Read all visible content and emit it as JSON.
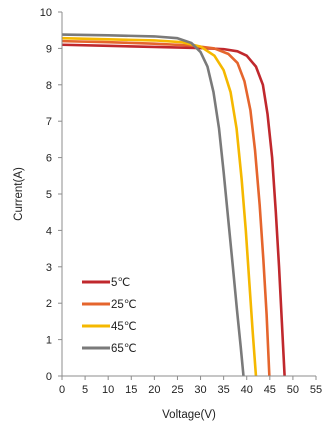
{
  "chart_data": {
    "type": "line",
    "xlabel": "Voltage(V)",
    "ylabel": "Current(A)",
    "xlim": [
      0,
      55
    ],
    "ylim": [
      0,
      10
    ],
    "xticks": [
      "0",
      "5",
      "10",
      "15",
      "20",
      "25",
      "30",
      "35",
      "40",
      "45",
      "50",
      "55"
    ],
    "yticks": [
      "0",
      "1",
      "2",
      "3",
      "4",
      "5",
      "6",
      "7",
      "8",
      "9",
      "10"
    ],
    "grid": false,
    "legend_position": "bottom-left",
    "series": [
      {
        "name": "5℃",
        "color": "#c0282d",
        "points": [
          [
            0,
            9.1
          ],
          [
            10,
            9.07
          ],
          [
            20,
            9.04
          ],
          [
            30,
            9.01
          ],
          [
            35,
            8.98
          ],
          [
            38,
            8.92
          ],
          [
            40,
            8.8
          ],
          [
            42,
            8.5
          ],
          [
            43.5,
            8.0
          ],
          [
            44.5,
            7.2
          ],
          [
            45.5,
            6.0
          ],
          [
            46.3,
            4.5
          ],
          [
            47.0,
            3.0
          ],
          [
            47.6,
            1.5
          ],
          [
            48.2,
            0
          ]
        ]
      },
      {
        "name": "25℃",
        "color": "#e5652d",
        "points": [
          [
            0,
            9.2
          ],
          [
            10,
            9.17
          ],
          [
            20,
            9.13
          ],
          [
            28,
            9.08
          ],
          [
            33,
            9.0
          ],
          [
            36,
            8.85
          ],
          [
            38,
            8.6
          ],
          [
            39.5,
            8.1
          ],
          [
            40.8,
            7.3
          ],
          [
            41.8,
            6.2
          ],
          [
            42.8,
            4.7
          ],
          [
            43.6,
            3.2
          ],
          [
            44.3,
            1.7
          ],
          [
            44.9,
            0
          ]
        ]
      },
      {
        "name": "45℃",
        "color": "#f5b800",
        "points": [
          [
            0,
            9.28
          ],
          [
            10,
            9.25
          ],
          [
            20,
            9.22
          ],
          [
            26,
            9.17
          ],
          [
            30,
            9.05
          ],
          [
            33,
            8.8
          ],
          [
            35,
            8.4
          ],
          [
            36.5,
            7.8
          ],
          [
            37.8,
            6.8
          ],
          [
            38.9,
            5.4
          ],
          [
            39.8,
            4.0
          ],
          [
            40.6,
            2.5
          ],
          [
            41.3,
            1.2
          ],
          [
            42.0,
            0
          ]
        ]
      },
      {
        "name": "65℃",
        "color": "#7a7a7a",
        "points": [
          [
            0,
            9.38
          ],
          [
            10,
            9.36
          ],
          [
            20,
            9.33
          ],
          [
            25,
            9.28
          ],
          [
            28,
            9.15
          ],
          [
            30,
            8.9
          ],
          [
            31.5,
            8.5
          ],
          [
            32.8,
            7.8
          ],
          [
            34,
            6.8
          ],
          [
            35,
            5.6
          ],
          [
            36,
            4.3
          ],
          [
            37,
            3.0
          ],
          [
            37.9,
            1.8
          ],
          [
            38.7,
            0.8
          ],
          [
            39.3,
            0
          ]
        ]
      }
    ]
  }
}
